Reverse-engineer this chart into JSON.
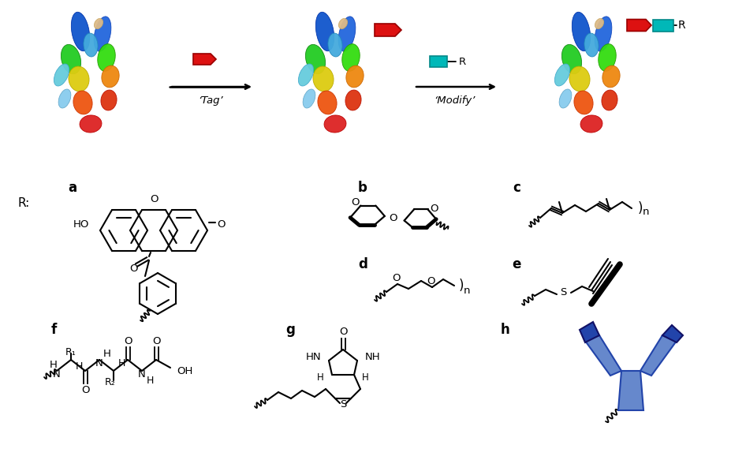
{
  "bg_color": "#ffffff",
  "fig_width": 9.46,
  "fig_height": 5.83,
  "dpi": 100,
  "label_a": "a",
  "label_b": "b",
  "label_c": "c",
  "label_d": "d",
  "label_e": "e",
  "label_f": "f",
  "label_g": "g",
  "label_h": "h",
  "tag_text": "‘Tag’",
  "modify_text": "‘Modify’",
  "R_label": "R:",
  "R_right": "R",
  "red_color": "#dd1111",
  "teal_color": "#00b8b8",
  "dark_blue": "#2244aa",
  "mid_blue": "#6688cc",
  "light_blue": "#8899cc",
  "label_fontsize": 12,
  "chem_fontsize": 9.5,
  "note_fontsize": 9
}
